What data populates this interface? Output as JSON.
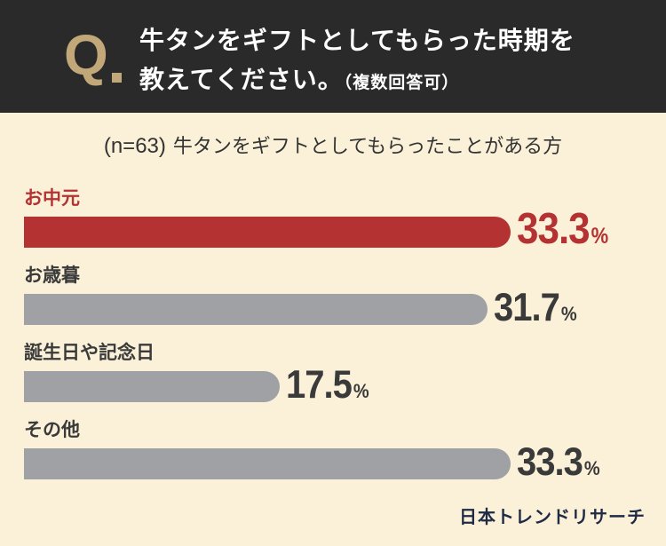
{
  "header": {
    "q_mark": "Q",
    "question_line1": "牛タンをギフトとしてもらった時期を",
    "question_line2": "教えてください。",
    "question_note": "（複数回答可）"
  },
  "subtitle": {
    "sample": "(n=63)",
    "text": "牛タンをギフトとしてもらったことがある方"
  },
  "colors": {
    "highlight": "#b53232",
    "bar_default": "#a0a1a5",
    "header_bg": "#2a2a2a",
    "q_accent": "#c2a878",
    "background": "#fbf1d9"
  },
  "chart_data": {
    "type": "bar",
    "orientation": "horizontal",
    "categories": [
      "お中元",
      "お歳暮",
      "誕生日や記念日",
      "その他"
    ],
    "values": [
      33.3,
      31.7,
      17.5,
      33.3
    ],
    "value_labels": [
      "33.3",
      "31.7",
      "17.5",
      "33.3"
    ],
    "unit": "%",
    "highlight_index": 0,
    "title": "",
    "xlabel": "",
    "ylabel": "",
    "grid": false
  },
  "footer": {
    "brand": "日本トレンドリサーチ"
  }
}
